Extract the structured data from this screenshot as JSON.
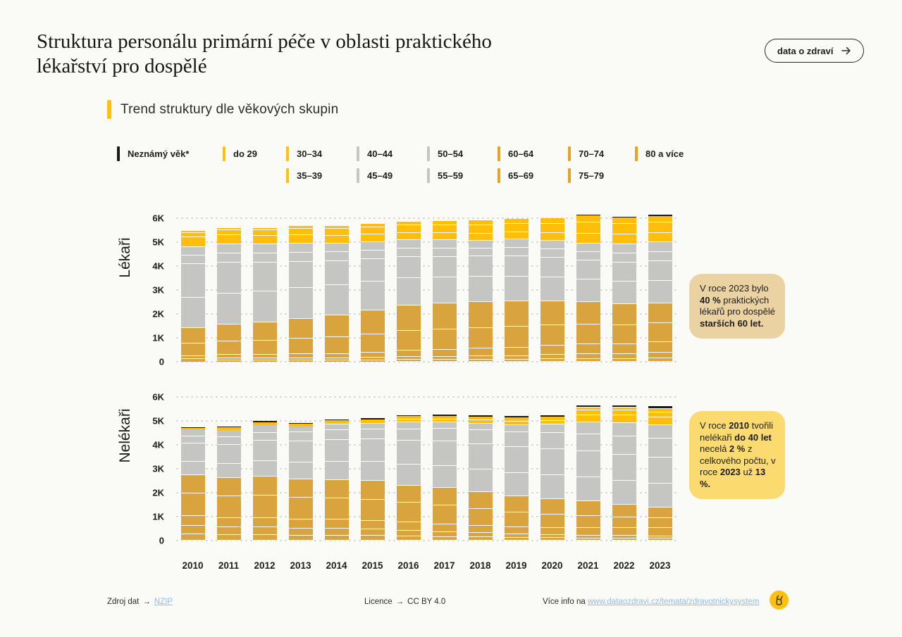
{
  "header": {
    "title": "Struktura personálu primární péče v oblasti praktického lékařství pro dospělé",
    "cta_label": "data o zdraví"
  },
  "subtitle": {
    "label": "Trend struktury dle věkových skupin"
  },
  "colors": {
    "accent_yellow": "#FFC010",
    "bar_young_yellow": "#FFBE0B",
    "bar_mid_gray": "#C5C5C3",
    "bar_old_ochre": "#D9A43E",
    "bar_unknown_black": "#1A1A1A",
    "annotation1_bg": "#EAD2A2",
    "annotation2_bg": "#FBDB70",
    "link_blue": "#8FBCE7"
  },
  "legend": {
    "items": [
      {
        "label": "Neznámý věk*",
        "color": "#1A1A1A",
        "row": 1,
        "col": 1
      },
      {
        "label": "do 29",
        "color": "#FFC010",
        "row": 1,
        "col": 2
      },
      {
        "label": "30–34",
        "color": "#FFC010",
        "row": 1,
        "col": 3
      },
      {
        "label": "35–39",
        "color": "#FFC010",
        "row": 2,
        "col": 3
      },
      {
        "label": "40–44",
        "color": "#C5C5C3",
        "row": 1,
        "col": 4
      },
      {
        "label": "45–49",
        "color": "#C5C5C3",
        "row": 2,
        "col": 4
      },
      {
        "label": "50–54",
        "color": "#C5C5C3",
        "row": 1,
        "col": 5
      },
      {
        "label": "55–59",
        "color": "#C5C5C3",
        "row": 2,
        "col": 5
      },
      {
        "label": "60–64",
        "color": "#E5A524",
        "row": 1,
        "col": 6
      },
      {
        "label": "65–69",
        "color": "#E5A524",
        "row": 2,
        "col": 6
      },
      {
        "label": "70–74",
        "color": "#E5A524",
        "row": 1,
        "col": 7
      },
      {
        "label": "75–79",
        "color": "#E5A524",
        "row": 2,
        "col": 7
      },
      {
        "label": "80 a více",
        "color": "#E5A524",
        "row": 1,
        "col": 8
      }
    ]
  },
  "chart_data": {
    "type": "bar",
    "stacked": true,
    "values_in": "thousands",
    "x": [
      "2010",
      "2011",
      "2012",
      "2013",
      "2014",
      "2015",
      "2016",
      "2017",
      "2018",
      "2019",
      "2020",
      "2021",
      "2022",
      "2023"
    ],
    "ylim": [
      0,
      6
    ],
    "yticks": [
      "0",
      "1K",
      "2K",
      "3K",
      "4K",
      "5K",
      "6K"
    ],
    "grid": "dotted horizontal",
    "stack_order_bottom_to_top": [
      "80 a více",
      "75–79",
      "70–74",
      "65–69",
      "60–64",
      "55–59",
      "50–54",
      "45–49",
      "40–44",
      "35–39",
      "30–34",
      "do 29",
      "Neznámý věk*"
    ],
    "charts": [
      {
        "id": "lekari",
        "ylabel": "Lékaři",
        "series": [
          {
            "name": "80 a více",
            "color": "#D9A43E",
            "values": [
              0.05,
              0.05,
              0.06,
              0.06,
              0.07,
              0.07,
              0.08,
              0.08,
              0.09,
              0.1,
              0.11,
              0.12,
              0.13,
              0.14
            ]
          },
          {
            "name": "75–79",
            "color": "#D9A43E",
            "values": [
              0.07,
              0.08,
              0.08,
              0.09,
              0.1,
              0.11,
              0.12,
              0.13,
              0.14,
              0.16,
              0.18,
              0.2,
              0.22,
              0.24
            ]
          },
          {
            "name": "70–74",
            "color": "#D9A43E",
            "values": [
              0.13,
              0.14,
              0.15,
              0.17,
              0.19,
              0.22,
              0.25,
              0.28,
              0.31,
              0.34,
              0.37,
              0.4,
              0.42,
              0.44
            ]
          },
          {
            "name": "65–69",
            "color": "#D9A43E",
            "values": [
              0.52,
              0.55,
              0.6,
              0.65,
              0.7,
              0.77,
              0.81,
              0.84,
              0.86,
              0.87,
              0.86,
              0.82,
              0.8,
              0.78
            ]
          },
          {
            "name": "60–64",
            "color": "#D9A43E",
            "values": [
              0.65,
              0.7,
              0.75,
              0.82,
              0.91,
              1.0,
              1.05,
              1.08,
              1.08,
              1.05,
              1.01,
              0.93,
              0.89,
              0.83
            ]
          },
          {
            "name": "55–59",
            "color": "#C5C5C3",
            "values": [
              1.25,
              1.3,
              1.3,
              1.28,
              1.25,
              1.2,
              1.15,
              1.1,
              1.05,
              1.02,
              1.0,
              0.95,
              0.95,
              0.95
            ]
          },
          {
            "name": "50–54",
            "color": "#C5C5C3",
            "values": [
              1.4,
              1.3,
              1.2,
              1.1,
              1.0,
              0.93,
              0.88,
              0.86,
              0.84,
              0.84,
              0.83,
              0.8,
              0.8,
              0.82
            ]
          },
          {
            "name": "45–49",
            "color": "#C5C5C3",
            "values": [
              0.36,
              0.37,
              0.38,
              0.37,
              0.37,
              0.35,
              0.34,
              0.34,
              0.33,
              0.34,
              0.34,
              0.35,
              0.37,
              0.39
            ]
          },
          {
            "name": "40–44",
            "color": "#C5C5C3",
            "values": [
              0.35,
              0.37,
              0.38,
              0.37,
              0.36,
              0.35,
              0.34,
              0.34,
              0.33,
              0.34,
              0.35,
              0.35,
              0.38,
              0.41
            ]
          },
          {
            "name": "35–39",
            "color": "#FFBE0B",
            "values": [
              0.4,
              0.38,
              0.36,
              0.34,
              0.32,
              0.31,
              0.3,
              0.29,
              0.29,
              0.3,
              0.32,
              0.42,
              0.4,
              0.38
            ]
          },
          {
            "name": "30–34",
            "color": "#FFBE0B",
            "values": [
              0.19,
              0.22,
              0.24,
              0.26,
              0.28,
              0.3,
              0.32,
              0.33,
              0.35,
              0.36,
              0.38,
              0.46,
              0.43,
              0.44
            ]
          },
          {
            "name": "do 29",
            "color": "#FFBE0B",
            "values": [
              0.08,
              0.09,
              0.1,
              0.11,
              0.12,
              0.14,
              0.16,
              0.18,
              0.2,
              0.22,
              0.24,
              0.28,
              0.26,
              0.26
            ]
          },
          {
            "name": "Neznámý věk*",
            "color": "#1A1A1A",
            "values": [
              0,
              0,
              0,
              0,
              0,
              0,
              0,
              0,
              0,
              0.01,
              0.01,
              0.02,
              0.02,
              0.05
            ]
          }
        ]
      },
      {
        "id": "nelekari",
        "ylabel": "Nelékaři",
        "series": [
          {
            "name": "80 a více",
            "color": "#D9A43E",
            "values": [
              0.25,
              0.24,
              0.23,
              0.22,
              0.21,
              0.2,
              0.18,
              0.16,
              0.14,
              0.12,
              0.11,
              0.1,
              0.1,
              0.1
            ]
          },
          {
            "name": "75–79",
            "color": "#D9A43E",
            "values": [
              0.35,
              0.33,
              0.32,
              0.3,
              0.28,
              0.26,
              0.24,
              0.21,
              0.18,
              0.15,
              0.13,
              0.12,
              0.11,
              0.1
            ]
          },
          {
            "name": "70–74",
            "color": "#D9A43E",
            "values": [
              0.4,
              0.39,
              0.39,
              0.38,
              0.37,
              0.36,
              0.34,
              0.32,
              0.3,
              0.28,
              0.3,
              0.32,
              0.33,
              0.35
            ]
          },
          {
            "name": "65–69",
            "color": "#D9A43E",
            "values": [
              0.95,
              0.92,
              0.93,
              0.9,
              0.88,
              0.87,
              0.83,
              0.8,
              0.71,
              0.63,
              0.56,
              0.5,
              0.44,
              0.4
            ]
          },
          {
            "name": "60–64",
            "color": "#D9A43E",
            "values": [
              0.75,
              0.75,
              0.78,
              0.75,
              0.76,
              0.78,
              0.72,
              0.73,
              0.7,
              0.67,
              0.65,
              0.61,
              0.52,
              0.45
            ]
          },
          {
            "name": "55–59",
            "color": "#C5C5C3",
            "values": [
              0.55,
              0.6,
              0.65,
              0.7,
              0.75,
              0.8,
              0.88,
              0.92,
              0.95,
              0.98,
              1.0,
              1.0,
              1.0,
              1.0
            ]
          },
          {
            "name": "50–54",
            "color": "#C5C5C3",
            "values": [
              0.75,
              0.8,
              0.85,
              0.88,
              0.9,
              0.93,
              1.0,
              1.03,
              1.06,
              1.09,
              1.1,
              1.1,
              1.1,
              1.1
            ]
          },
          {
            "name": "45–49",
            "color": "#C5C5C3",
            "values": [
              0.3,
              0.32,
              0.31,
              0.38,
              0.4,
              0.42,
              0.48,
              0.52,
              0.58,
              0.63,
              0.68,
              0.72,
              0.77,
              0.8
            ]
          },
          {
            "name": "40–44",
            "color": "#C5C5C3",
            "values": [
              0.3,
              0.3,
              0.32,
              0.24,
              0.23,
              0.23,
              0.3,
              0.26,
              0.25,
              0.3,
              0.35,
              0.5,
              0.55,
              0.55
            ]
          },
          {
            "name": "35–39",
            "color": "#FFBE0B",
            "values": [
              0.04,
              0.06,
              0.06,
              0.07,
              0.08,
              0.09,
              0.13,
              0.13,
              0.14,
              0.15,
              0.16,
              0.3,
              0.31,
              0.33
            ]
          },
          {
            "name": "30–34",
            "color": "#FFBE0B",
            "values": [
              0.03,
              0.03,
              0.04,
              0.04,
              0.05,
              0.06,
              0.09,
              0.09,
              0.1,
              0.11,
              0.11,
              0.2,
              0.21,
              0.22
            ]
          },
          {
            "name": "do 29",
            "color": "#FFBE0B",
            "values": [
              0.01,
              0.02,
              0.02,
              0.02,
              0.02,
              0.03,
              0.05,
              0.06,
              0.06,
              0.06,
              0.07,
              0.13,
              0.13,
              0.15
            ]
          },
          {
            "name": "Neznámý věk*",
            "color": "#1A1A1A",
            "values": [
              0.04,
              0.04,
              0.05,
              0.04,
              0.04,
              0.05,
              0.04,
              0.05,
              0.05,
              0.05,
              0.06,
              0.1,
              0.1,
              0.12
            ]
          }
        ]
      }
    ]
  },
  "annotations": [
    {
      "bg": "#EAD2A2",
      "runs": [
        {
          "t": "V roce 2023 bylo "
        },
        {
          "t": "40 %",
          "b": true
        },
        {
          "t": " praktických lékařů pro dospělé "
        },
        {
          "t": "starších 60 let.",
          "b": true
        }
      ]
    },
    {
      "bg": "#FBDB70",
      "runs": [
        {
          "t": "V roce "
        },
        {
          "t": "2010",
          "b": true
        },
        {
          "t": " tvořili nelékaři "
        },
        {
          "t": "do 40 let",
          "b": true
        },
        {
          "t": " necelá "
        },
        {
          "t": "2 %",
          "b": true
        },
        {
          "t": " z celkového počtu, v roce "
        },
        {
          "t": "2023",
          "b": true
        },
        {
          "t": " už "
        },
        {
          "t": "13 %.",
          "b": true
        }
      ]
    }
  ],
  "footer": {
    "arrow": "→",
    "source_label": "Zdroj dat",
    "source_link": "NZIP",
    "license_label": "Licence",
    "license_value": "CC BY 4.0",
    "info_label": "Více info na",
    "info_link": "www.dataozdravi.cz/temata/zdravotnickysystem"
  }
}
